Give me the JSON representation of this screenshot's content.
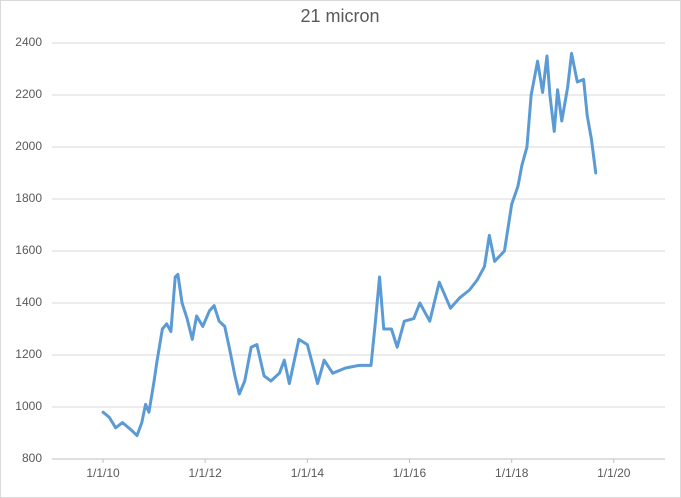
{
  "chart_data": {
    "type": "line",
    "title": "21 micron",
    "x": [
      "2010-01-01",
      "2010-02-15",
      "2010-04-01",
      "2010-05-20",
      "2010-07-25",
      "2010-09-01",
      "2010-10-05",
      "2010-11-01",
      "2010-11-25",
      "2011-01-01",
      "2011-01-20",
      "2011-03-01",
      "2011-04-01",
      "2011-05-01",
      "2011-06-01",
      "2011-06-20",
      "2011-07-20",
      "2011-08-25",
      "2011-10-01",
      "2011-11-01",
      "2011-12-15",
      "2012-02-01",
      "2012-03-05",
      "2012-04-10",
      "2012-05-20",
      "2012-06-25",
      "2012-08-01",
      "2012-09-01",
      "2012-10-10",
      "2012-11-25",
      "2013-01-05",
      "2013-02-25",
      "2013-04-15",
      "2013-06-15",
      "2013-07-20",
      "2013-08-25",
      "2013-11-01",
      "2014-01-01",
      "2014-03-15",
      "2014-05-01",
      "2014-07-01",
      "2014-10-01",
      "2015-01-05",
      "2015-04-01",
      "2015-05-01",
      "2015-06-01",
      "2015-07-01",
      "2015-08-25",
      "2015-10-05",
      "2015-11-25",
      "2016-02-01",
      "2016-03-15",
      "2016-05-25",
      "2016-08-01",
      "2016-10-20",
      "2016-12-25",
      "2017-03-05",
      "2017-05-01",
      "2017-06-20",
      "2017-07-25",
      "2017-09-01",
      "2017-11-10",
      "2018-01-01",
      "2018-02-15",
      "2018-03-15",
      "2018-04-20",
      "2018-05-20",
      "2018-07-05",
      "2018-08-10",
      "2018-09-10",
      "2018-10-01",
      "2018-11-01",
      "2018-11-25",
      "2018-12-25",
      "2019-02-05",
      "2019-03-05",
      "2019-04-15",
      "2019-05-30",
      "2019-06-25",
      "2019-07-25",
      "2019-08-25"
    ],
    "series": [
      {
        "color": "#5b9bd5",
        "values": [
          980,
          960,
          920,
          940,
          910,
          890,
          940,
          1010,
          980,
          1100,
          1170,
          1300,
          1320,
          1290,
          1500,
          1510,
          1400,
          1340,
          1260,
          1350,
          1310,
          1370,
          1390,
          1330,
          1310,
          1220,
          1120,
          1050,
          1100,
          1230,
          1240,
          1120,
          1100,
          1130,
          1180,
          1090,
          1260,
          1240,
          1090,
          1180,
          1130,
          1150,
          1160,
          1160,
          1320,
          1500,
          1300,
          1300,
          1230,
          1330,
          1340,
          1400,
          1330,
          1480,
          1380,
          1420,
          1450,
          1490,
          1540,
          1660,
          1560,
          1600,
          1780,
          1850,
          1930,
          2000,
          2200,
          2330,
          2210,
          2350,
          2200,
          2060,
          2220,
          2100,
          2230,
          2360,
          2250,
          2260,
          2120,
          2030,
          1900
        ]
      }
    ],
    "xlim": [
      "2009-01-01",
      "2021-01-01"
    ],
    "xticks": [
      {
        "value": "2010-01-01",
        "label": "1/1/10"
      },
      {
        "value": "2012-01-01",
        "label": "1/1/12"
      },
      {
        "value": "2014-01-01",
        "label": "1/1/14"
      },
      {
        "value": "2016-01-01",
        "label": "1/1/16"
      },
      {
        "value": "2018-01-01",
        "label": "1/1/18"
      },
      {
        "value": "2020-01-01",
        "label": "1/1/20"
      }
    ],
    "ylim": [
      800,
      2400
    ],
    "yticks": [
      800,
      1000,
      1200,
      1400,
      1600,
      1800,
      2000,
      2200,
      2400
    ],
    "grid": true
  }
}
